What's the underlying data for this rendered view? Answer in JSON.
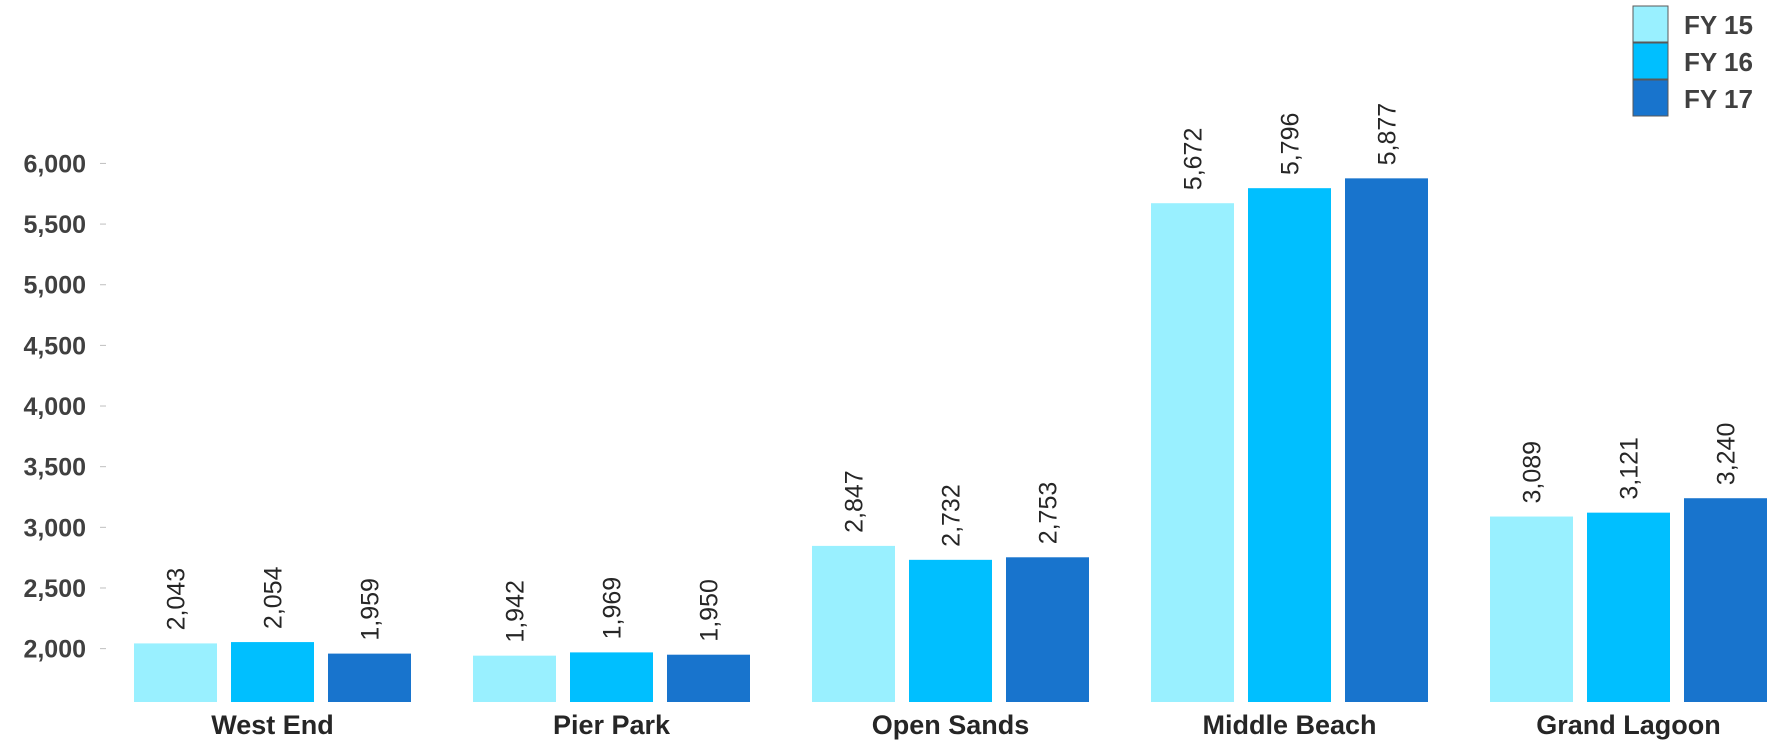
{
  "chart_data": {
    "type": "bar",
    "categories": [
      "West End",
      "Pier Park",
      "Open Sands",
      "Middle Beach",
      "Grand Lagoon"
    ],
    "series": [
      {
        "name": "FY 15",
        "color": "#99f0ff",
        "values": [
          2043,
          1942,
          2847,
          5672,
          3089
        ]
      },
      {
        "name": "FY 16",
        "color": "#00bfff",
        "values": [
          2054,
          1969,
          2732,
          5796,
          3121
        ]
      },
      {
        "name": "FY 17",
        "color": "#1874cd",
        "values": [
          1959,
          1950,
          2753,
          5877,
          3240
        ]
      }
    ],
    "data_labels": [
      [
        "2,043",
        "1,942",
        "2,847",
        "5,672",
        "3,089"
      ],
      [
        "2,054",
        "1,969",
        "2,732",
        "5,796",
        "3,121"
      ],
      [
        "1,959",
        "1,950",
        "2,753",
        "5,877",
        "3,240"
      ]
    ],
    "title": "",
    "xlabel": "",
    "ylabel": "",
    "ylim": [
      1560,
      6000
    ],
    "yticks": [
      2000,
      2500,
      3000,
      3500,
      4000,
      4500,
      5000,
      5500,
      6000
    ],
    "ytick_labels": [
      "2,000",
      "2,500",
      "3,000",
      "3,500",
      "4,000",
      "4,500",
      "5,000",
      "5,500",
      "6,000"
    ],
    "grid": false,
    "legend_position": "top-right"
  }
}
